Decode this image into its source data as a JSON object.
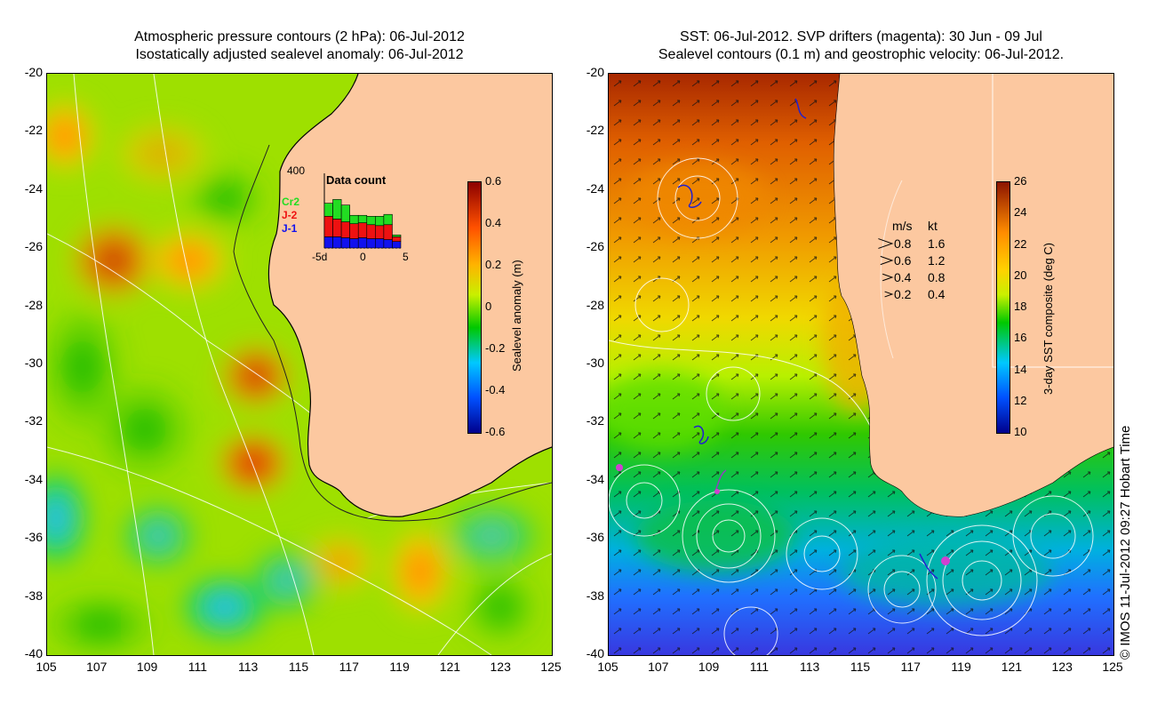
{
  "left_panel": {
    "title_line1": "Atmospheric pressure contours (2 hPa): 06-Jul-2012",
    "title_line2": "Isostatically adjusted sealevel anomaly: 06-Jul-2012",
    "colorbar": {
      "label": "Sealevel anomaly (m)",
      "ticks": [
        "0.6",
        "0.4",
        "0.2",
        "0",
        "-0.2",
        "-0.4",
        "-0.6"
      ]
    },
    "data_count": {
      "title": "Data count",
      "y_top": "400",
      "x_ticks": [
        "-5d",
        "0",
        "5"
      ],
      "legend": [
        "Cr2",
        "J-2",
        "J-1"
      ],
      "colors": {
        "Cr2": "#22dd22",
        "J-2": "#ee1111",
        "J-1": "#1111ee"
      },
      "bars": [
        {
          "J-1": 60,
          "J-2": 110,
          "Cr2": 70
        },
        {
          "J-1": 60,
          "J-2": 95,
          "Cr2": 105
        },
        {
          "J-1": 55,
          "J-2": 85,
          "Cr2": 90
        },
        {
          "J-1": 50,
          "J-2": 80,
          "Cr2": 45
        },
        {
          "J-1": 55,
          "J-2": 80,
          "Cr2": 40
        },
        {
          "J-1": 50,
          "J-2": 75,
          "Cr2": 45
        },
        {
          "J-1": 50,
          "J-2": 70,
          "Cr2": 50
        },
        {
          "J-1": 45,
          "J-2": 80,
          "Cr2": 55
        },
        {
          "J-1": 35,
          "J-2": 25,
          "Cr2": 10
        }
      ]
    }
  },
  "right_panel": {
    "title_line1": "SST: 06-Jul-2012. SVP drifters (magenta): 30 Jun - 09 Jul",
    "title_line2": "Sealevel contours (0.1 m) and geostrophic velocity: 06-Jul-2012.",
    "colorbar": {
      "label": "3-day SST composite (deg C)",
      "ticks": [
        "26",
        "24",
        "22",
        "20",
        "18",
        "16",
        "14",
        "12",
        "10"
      ]
    },
    "velocity_legend": {
      "header_ms": "m/s",
      "header_kt": "kt",
      "rows": [
        {
          "ms": "0.8",
          "kt": "1.6"
        },
        {
          "ms": "0.6",
          "kt": "1.2"
        },
        {
          "ms": "0.4",
          "kt": "0.8"
        },
        {
          "ms": "0.2",
          "kt": "0.4"
        }
      ]
    }
  },
  "axes": {
    "y_ticks": [
      "-20",
      "-22",
      "-24",
      "-26",
      "-28",
      "-30",
      "-32",
      "-34",
      "-36",
      "-38",
      "-40"
    ],
    "x_ticks": [
      "105",
      "107",
      "109",
      "111",
      "113",
      "115",
      "117",
      "119",
      "121",
      "123",
      "125"
    ]
  },
  "copyright": "© IMOS 11-Jul-2012 09:27 Hobart Time",
  "colors": {
    "land": "#fcc8a0",
    "anomaly_scale": [
      "#00008c",
      "#0050ff",
      "#00c8ff",
      "#00c800",
      "#c8f000",
      "#ffb400",
      "#ff5000",
      "#8c0000"
    ],
    "sst_scale": [
      "#00008c",
      "#0050ff",
      "#00c8ff",
      "#00c800",
      "#c8f000",
      "#ffd200",
      "#ff8c00",
      "#8c1400"
    ]
  }
}
